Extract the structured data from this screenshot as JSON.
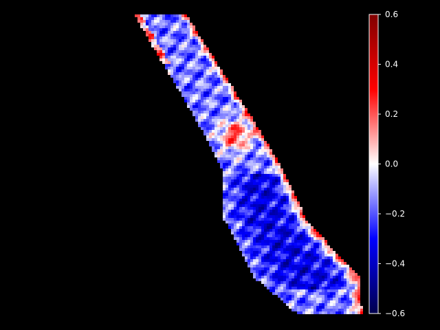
{
  "chart_data": {
    "type": "heatmap",
    "title": "",
    "xlabel": "",
    "ylabel": "",
    "background": "#000000",
    "cmap": "seismic",
    "color_stops": [
      "#00004d",
      "#0000ff",
      "#ffffff",
      "#ff0000",
      "#800000"
    ],
    "vmin": -0.6,
    "vmax": 0.6,
    "colorbar": {
      "placement": "right",
      "ticks": [
        0.6,
        0.4,
        0.2,
        0.0,
        -0.2,
        -0.4,
        -0.6
      ],
      "tick_labels": [
        "0.6",
        "0.4",
        "0.2",
        "0.0",
        "−0.2",
        "−0.4",
        "−0.6"
      ]
    },
    "grid": false,
    "description_of_field": {
      "shape": "diagonal elongated strip from upper-left to lower-right",
      "dominant_sign": "negative",
      "typical_values": {
        "bulk": -0.2,
        "lower_lobe": -0.35,
        "edges": 0.25,
        "central_patch": 0.3
      }
    }
  }
}
